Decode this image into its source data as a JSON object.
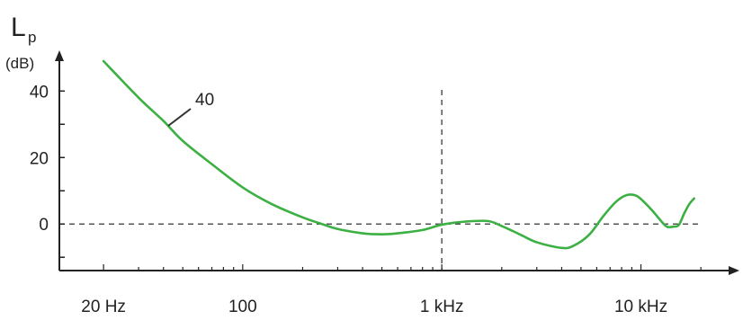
{
  "chart_data": {
    "type": "line",
    "title": "",
    "ylabel": {
      "main": "L",
      "subscript": "p",
      "unit": "(dB)"
    },
    "xlabel": "",
    "x_scale": "log",
    "x_ticks": [
      {
        "value": 20,
        "label": "20 Hz"
      },
      {
        "value": 100,
        "label": "100"
      },
      {
        "value": 1000,
        "label": "1 kHz"
      },
      {
        "value": 10000,
        "label": "10 kHz"
      }
    ],
    "y_ticks": [
      {
        "value": 40,
        "label": "40"
      },
      {
        "value": 20,
        "label": "20"
      },
      {
        "value": 0,
        "label": "0"
      }
    ],
    "xlim": [
      12,
      27000
    ],
    "ylim": [
      -14,
      49
    ],
    "reference_lines": [
      {
        "axis": "y",
        "value": 0,
        "style": "dashed"
      },
      {
        "axis": "x",
        "value": 1000,
        "style": "dashed"
      }
    ],
    "series": [
      {
        "name": "40",
        "color": "#3cb043",
        "x": [
          20,
          30,
          40,
          50,
          70,
          100,
          140,
          200,
          250,
          300,
          400,
          500,
          600,
          800,
          1000,
          1300,
          1700,
          2000,
          2500,
          3000,
          4000,
          4600,
          5500,
          6500,
          7500,
          8500,
          9500,
          10500,
          11500,
          12500,
          13500,
          14500,
          15500,
          16500,
          17500,
          18500
        ],
        "y": [
          49,
          38,
          31,
          25,
          18,
          11,
          6,
          2,
          0,
          -1.5,
          -2.8,
          -3.1,
          -2.8,
          -1.8,
          -0.2,
          0.7,
          0.9,
          -0.6,
          -3.3,
          -5.5,
          -7.2,
          -6.5,
          -3.2,
          2.5,
          6.7,
          8.7,
          8.5,
          6.3,
          3.8,
          1.2,
          -0.8,
          -0.8,
          -0.3,
          3.2,
          6.0,
          7.7
        ]
      }
    ],
    "annotations": [
      {
        "text": "40",
        "series": "40"
      }
    ],
    "grid": false,
    "legend": "none"
  }
}
